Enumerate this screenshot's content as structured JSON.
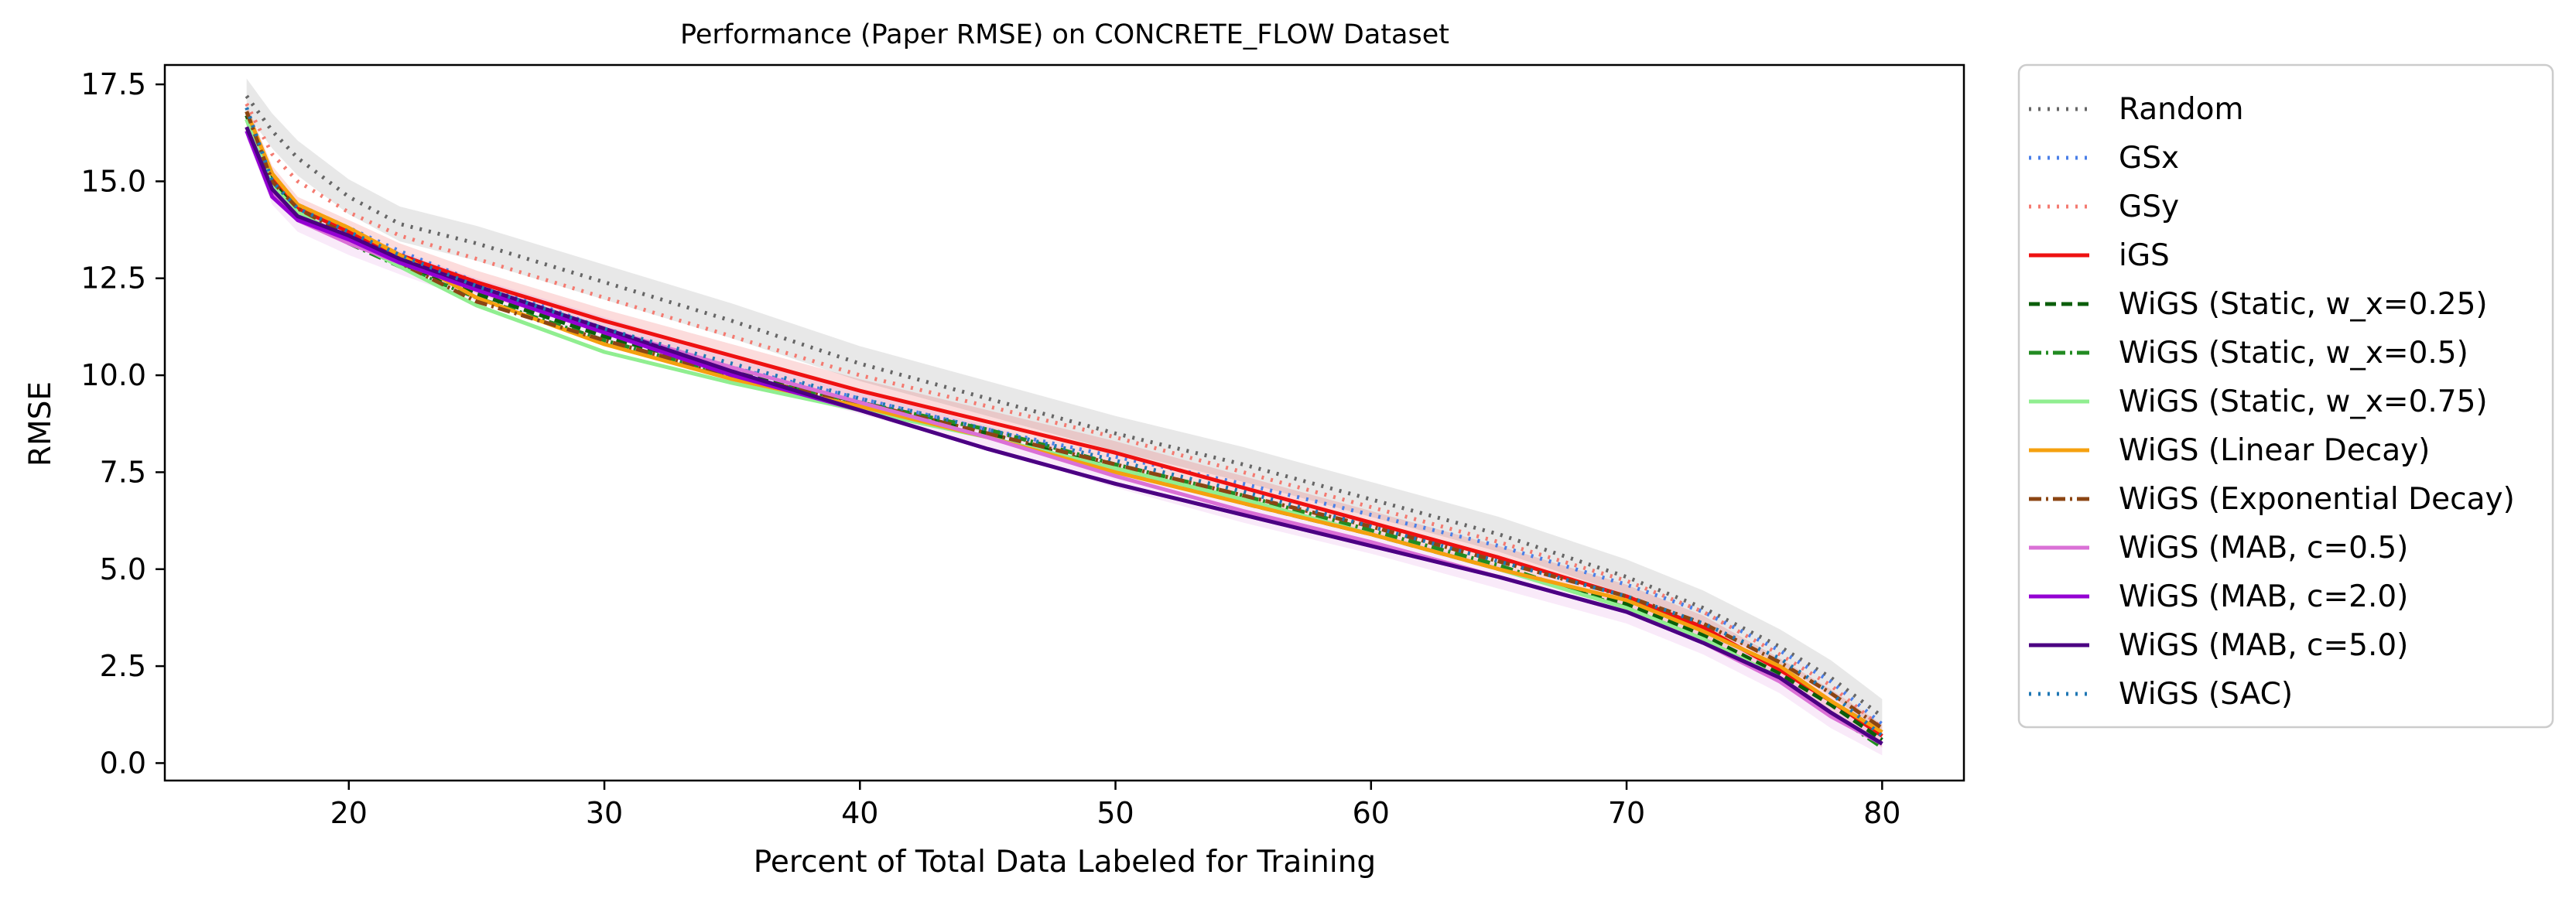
{
  "chart_data": {
    "type": "line",
    "title": "Performance (Paper RMSE) on CONCRETE_FLOW Dataset",
    "xlabel": "Percent of Total Data Labeled for Training",
    "ylabel": "RMSE",
    "xlim": [
      12.8,
      83.2
    ],
    "ylim": [
      -0.45,
      18.0
    ],
    "xticks": [
      20,
      30,
      40,
      50,
      60,
      70,
      80
    ],
    "xtick_labels": [
      "20",
      "30",
      "40",
      "50",
      "60",
      "70",
      "80"
    ],
    "yticks": [
      0.0,
      2.5,
      5.0,
      7.5,
      10.0,
      12.5,
      15.0,
      17.5
    ],
    "ytick_labels": [
      "0.0",
      "2.5",
      "5.0",
      "7.5",
      "10.0",
      "12.5",
      "15.0",
      "17.5"
    ],
    "grid": false,
    "legend_position": "outside-right",
    "x": [
      16,
      17,
      18,
      20,
      22,
      25,
      30,
      35,
      40,
      45,
      50,
      55,
      60,
      65,
      70,
      73,
      76,
      78,
      80
    ],
    "series": [
      {
        "name": "Random",
        "color": "#666666",
        "style": "dotted",
        "band": 0.45,
        "values": [
          17.2,
          16.3,
          15.6,
          14.6,
          13.9,
          13.4,
          12.4,
          11.4,
          10.3,
          9.4,
          8.5,
          7.7,
          6.8,
          5.9,
          4.8,
          4.0,
          3.0,
          2.2,
          1.2
        ]
      },
      {
        "name": "GSx",
        "color": "#4a7fe8",
        "style": "dotted",
        "band": 0,
        "values": [
          16.8,
          15.2,
          14.4,
          13.8,
          13.2,
          12.4,
          11.2,
          10.2,
          9.4,
          8.6,
          7.9,
          7.2,
          6.4,
          5.6,
          4.6,
          3.9,
          2.9,
          2.1,
          1.0
        ]
      },
      {
        "name": "GSy",
        "color": "#f47a70",
        "style": "dotted",
        "band": 0,
        "values": [
          17.0,
          15.7,
          15.0,
          14.2,
          13.6,
          13.0,
          12.0,
          11.0,
          10.0,
          9.2,
          8.4,
          7.5,
          6.6,
          5.7,
          4.7,
          3.9,
          2.8,
          2.0,
          0.9
        ]
      },
      {
        "name": "iGS",
        "color": "#ee1111",
        "style": "solid",
        "band": 0.3,
        "values": [
          16.7,
          15.1,
          14.3,
          13.7,
          13.1,
          12.4,
          11.4,
          10.5,
          9.6,
          8.8,
          8.0,
          7.1,
          6.2,
          5.3,
          4.3,
          3.5,
          2.4,
          1.6,
          0.7
        ]
      },
      {
        "name": "WiGS (Static, w_x=0.25)",
        "color": "#0b5e0b",
        "style": "dashed",
        "band": 0,
        "values": [
          16.7,
          15.0,
          14.2,
          13.5,
          12.9,
          12.1,
          11.0,
          10.1,
          9.3,
          8.5,
          7.6,
          6.7,
          5.9,
          5.0,
          4.1,
          3.3,
          2.3,
          1.5,
          0.6
        ]
      },
      {
        "name": "WiGS (Static, w_x=0.5)",
        "color": "#228b22",
        "style": "dashdot",
        "band": 0,
        "values": [
          16.6,
          14.9,
          14.1,
          13.4,
          12.8,
          12.0,
          10.9,
          10.0,
          9.3,
          8.6,
          7.7,
          6.9,
          6.0,
          5.1,
          4.0,
          3.2,
          2.2,
          1.3,
          0.4
        ]
      },
      {
        "name": "WiGS (Static, w_x=0.75)",
        "color": "#90ee90",
        "style": "solid",
        "band": 0,
        "values": [
          16.6,
          14.9,
          14.2,
          13.5,
          12.8,
          11.8,
          10.6,
          9.8,
          9.1,
          8.4,
          7.6,
          6.8,
          5.9,
          5.0,
          4.0,
          3.2,
          2.2,
          1.3,
          0.5
        ]
      },
      {
        "name": "WiGS (Linear Decay)",
        "color": "#f5a00f",
        "style": "solid",
        "band": 0,
        "values": [
          16.8,
          15.2,
          14.4,
          13.8,
          13.1,
          12.0,
          10.8,
          9.9,
          9.2,
          8.4,
          7.5,
          6.7,
          5.9,
          5.0,
          4.2,
          3.4,
          2.5,
          1.6,
          0.8
        ]
      },
      {
        "name": "WiGS (Exponential Decay)",
        "color": "#8b4513",
        "style": "dashdot",
        "band": 0,
        "values": [
          16.8,
          15.0,
          14.3,
          13.6,
          12.9,
          11.9,
          10.9,
          10.0,
          9.3,
          8.5,
          7.7,
          6.9,
          6.1,
          5.2,
          4.3,
          3.6,
          2.6,
          1.8,
          0.9
        ]
      },
      {
        "name": "WiGS (MAB, c=0.5)",
        "color": "#da70d6",
        "style": "solid",
        "band": 0.3,
        "values": [
          16.4,
          14.7,
          14.0,
          13.4,
          12.9,
          12.2,
          11.2,
          10.2,
          9.3,
          8.4,
          7.4,
          6.5,
          5.7,
          4.8,
          3.9,
          3.1,
          2.1,
          1.2,
          0.5
        ]
      },
      {
        "name": "WiGS (MAB, c=2.0)",
        "color": "#9400d3",
        "style": "solid",
        "band": 0,
        "values": [
          16.3,
          14.6,
          14.0,
          13.5,
          12.9,
          12.2,
          11.1,
          10.0,
          9.1,
          8.1,
          7.2,
          6.4,
          5.6,
          4.8,
          3.9,
          3.1,
          2.2,
          1.3,
          0.5
        ]
      },
      {
        "name": "WiGS (MAB, c=5.0)",
        "color": "#4b0082",
        "style": "solid",
        "band": 0,
        "values": [
          16.4,
          14.8,
          14.1,
          13.6,
          13.0,
          12.3,
          11.2,
          10.1,
          9.1,
          8.1,
          7.2,
          6.4,
          5.6,
          4.8,
          3.9,
          3.1,
          2.2,
          1.3,
          0.5
        ]
      },
      {
        "name": "WiGS (SAC)",
        "color": "#1f77b4",
        "style": "dotted",
        "band": 0,
        "values": [
          16.9,
          15.0,
          14.3,
          13.7,
          13.1,
          12.3,
          11.2,
          10.3,
          9.4,
          8.6,
          7.8,
          7.0,
          6.1,
          5.2,
          4.3,
          3.6,
          2.7,
          1.8,
          0.7
        ]
      }
    ]
  }
}
